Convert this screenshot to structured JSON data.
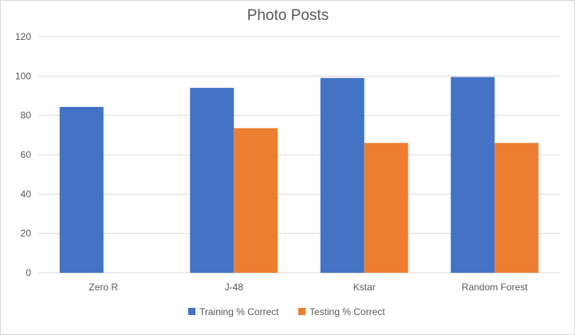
{
  "chart_data": {
    "type": "bar",
    "title": "Photo Posts",
    "xlabel": "",
    "ylabel": "",
    "categories": [
      "Zero R",
      "J-48",
      "Kstar",
      "Random Forest"
    ],
    "series": [
      {
        "name": "Training % Correct",
        "color": "#4472C4",
        "values": [
          84.3,
          94,
          99,
          99.5
        ]
      },
      {
        "name": "Testing % Correct",
        "color": "#ED7D31",
        "values": [
          null,
          73.5,
          66,
          66
        ]
      }
    ],
    "ylim": [
      0,
      120
    ],
    "yticks": [
      0,
      20,
      40,
      60,
      80,
      100,
      120
    ],
    "grid": true,
    "legend_position": "bottom"
  }
}
